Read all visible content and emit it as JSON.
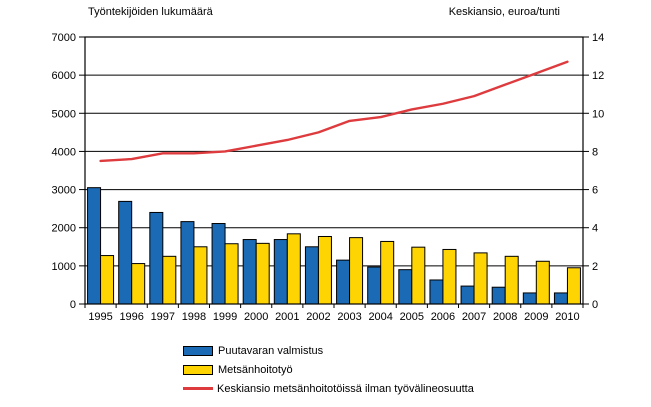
{
  "chart_data": {
    "type": "bar",
    "subtype": "grouped-bars-with-right-axis-line",
    "title": "",
    "categories": [
      "1995",
      "1996",
      "1997",
      "1998",
      "1999",
      "2000",
      "2001",
      "2002",
      "2003",
      "2004",
      "2005",
      "2006",
      "2007",
      "2008",
      "2009",
      "2010"
    ],
    "series": [
      {
        "name": "Puutavaran valmistus",
        "type": "bar",
        "axis": "left",
        "color": "#1A6AB5",
        "values": [
          3050,
          2690,
          2400,
          2160,
          2110,
          1690,
          1690,
          1500,
          1150,
          970,
          900,
          630,
          470,
          440,
          290,
          290
        ]
      },
      {
        "name": "Metsänhoitotyö",
        "type": "bar",
        "axis": "left",
        "color": "#FFD403",
        "values": [
          1270,
          1060,
          1250,
          1500,
          1580,
          1590,
          1840,
          1770,
          1740,
          1640,
          1490,
          1430,
          1340,
          1250,
          1120,
          950
        ]
      },
      {
        "name": "Keskiansio metsänhoitotöissä ilman työvälineosuutta",
        "type": "line",
        "axis": "right",
        "color": "#DE3B3E",
        "values": [
          7.5,
          7.6,
          7.9,
          7.9,
          8.0,
          8.3,
          8.6,
          9.0,
          9.6,
          9.8,
          10.2,
          10.5,
          10.9,
          11.5,
          12.1,
          12.7
        ]
      }
    ],
    "left_axis": {
      "title": "Työntekijöiden lukumäärä",
      "range": [
        0,
        7000
      ],
      "tick_step": 1000,
      "tick_labels": [
        "0",
        "1000",
        "2000",
        "3000",
        "4000",
        "5000",
        "6000",
        "7000"
      ]
    },
    "right_axis": {
      "title": "Keskiansio, euroa/tunti",
      "range": [
        0,
        14
      ],
      "tick_step": 2,
      "tick_labels": [
        "0",
        "2",
        "4",
        "6",
        "8",
        "10",
        "12",
        "14"
      ]
    },
    "grid": true,
    "legend_position": "bottom-left",
    "colors": {
      "grid": "#000000",
      "bar_border": "#000000",
      "text": "#000000",
      "background": "#ffffff"
    }
  }
}
